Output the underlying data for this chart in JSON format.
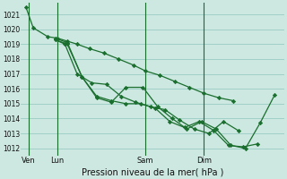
{
  "xlabel": "Pression niveau de la mer( hPa )",
  "bg_color": "#cce8e0",
  "grid_color": "#99ccc4",
  "line_color": "#1a6e2e",
  "ylim": [
    1011.5,
    1021.8
  ],
  "xlim": [
    0,
    216
  ],
  "yticks": [
    1012,
    1013,
    1014,
    1015,
    1016,
    1017,
    1018,
    1019,
    1020,
    1021
  ],
  "day_labels": [
    "Ven",
    "Lun",
    "Sam",
    "Dim"
  ],
  "day_positions": [
    6,
    30,
    102,
    150
  ],
  "vline_positions": [
    6,
    30,
    102,
    150
  ],
  "line1_x": [
    4,
    10,
    22,
    30,
    38,
    46,
    56,
    68,
    80,
    92,
    102,
    114,
    126,
    138,
    150,
    162,
    174
  ],
  "line1_y": [
    1021.5,
    1020.1,
    1019.5,
    1019.4,
    1019.2,
    1019.0,
    1018.7,
    1018.4,
    1018.0,
    1017.6,
    1017.2,
    1016.9,
    1016.5,
    1016.1,
    1015.7,
    1015.4,
    1015.2
  ],
  "line2_x": [
    28,
    36,
    46,
    58,
    70,
    82,
    94,
    106,
    118,
    130,
    142,
    154,
    166,
    178
  ],
  "line2_y": [
    1019.3,
    1019.0,
    1017.0,
    1016.4,
    1016.3,
    1015.5,
    1015.1,
    1014.8,
    1014.6,
    1013.9,
    1013.3,
    1013.0,
    1013.8,
    1013.2
  ],
  "line3_x": [
    28,
    38,
    50,
    62,
    74,
    86,
    98,
    110,
    122,
    134,
    146,
    158,
    170,
    182,
    194
  ],
  "line3_y": [
    1019.3,
    1019.0,
    1016.8,
    1015.5,
    1015.2,
    1015.0,
    1015.0,
    1014.7,
    1013.8,
    1013.4,
    1013.8,
    1013.2,
    1012.2,
    1012.1,
    1012.3
  ],
  "line4_x": [
    28,
    38,
    50,
    62,
    74,
    86,
    100,
    112,
    124,
    136,
    148,
    160,
    172,
    184,
    196,
    208
  ],
  "line4_y": [
    1019.4,
    1019.1,
    1016.8,
    1015.4,
    1015.1,
    1016.1,
    1016.1,
    1014.8,
    1014.0,
    1013.3,
    1013.8,
    1013.3,
    1012.2,
    1012.0,
    1013.7,
    1015.6
  ]
}
